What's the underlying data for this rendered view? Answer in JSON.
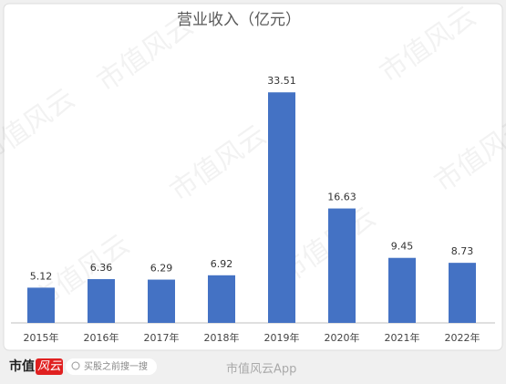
{
  "chart_data": {
    "type": "bar",
    "title": "营业收入（亿元）",
    "categories": [
      "2015年",
      "2016年",
      "2017年",
      "2018年",
      "2019年",
      "2020年",
      "2021年",
      "2022年"
    ],
    "values": [
      5.12,
      6.36,
      6.29,
      6.92,
      33.51,
      16.63,
      9.45,
      8.73
    ],
    "color": "#4472c4",
    "ylim": [
      0,
      35
    ]
  },
  "background_watermark": "市值风云",
  "footer": {
    "brand_a": "市值",
    "brand_b": "风云",
    "search": "买股之前搜一搜",
    "app": "市值风云App"
  }
}
